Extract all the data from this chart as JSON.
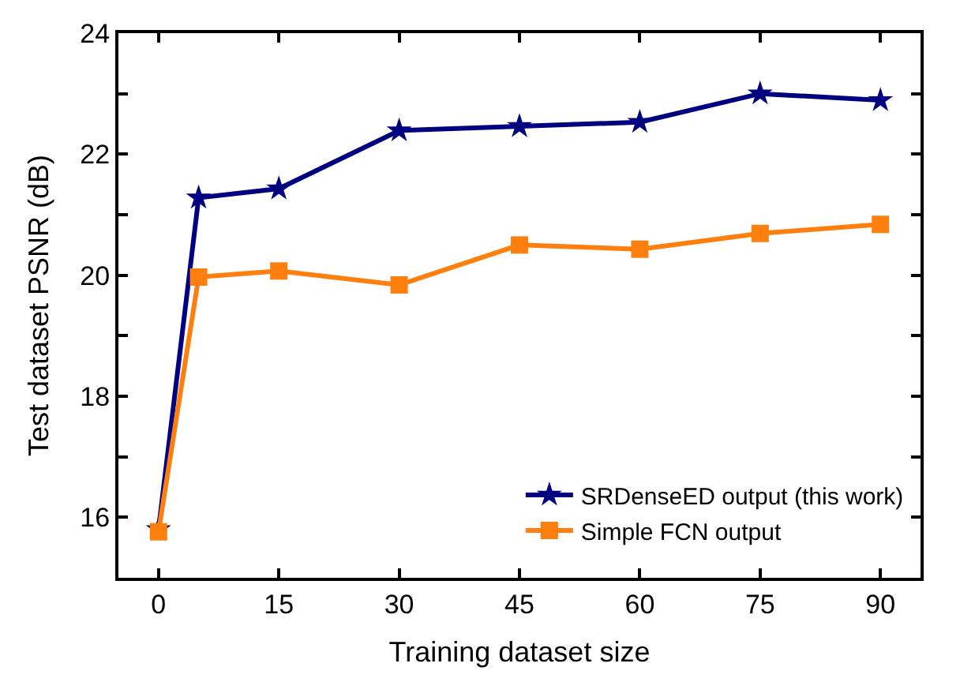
{
  "chart_data": {
    "type": "line",
    "xlabel": "Training dataset size",
    "ylabel": "Test dataset PSNR (dB)",
    "x": [
      0,
      5,
      15,
      30,
      45,
      60,
      75,
      90
    ],
    "series": [
      {
        "name": "SRDenseED output (this work)",
        "color": "#000080",
        "marker": "star",
        "values": [
          15.8,
          21.28,
          21.43,
          22.39,
          22.46,
          22.53,
          23.0,
          22.89
        ]
      },
      {
        "name": "Simple FCN output",
        "color": "#ff7f0e",
        "marker": "square",
        "values": [
          15.76,
          19.97,
          20.07,
          19.84,
          20.5,
          20.43,
          20.69,
          20.84
        ]
      }
    ],
    "xlim": [
      -5,
      95
    ],
    "ylim": [
      15,
      24
    ],
    "xticks": [
      0,
      15,
      30,
      45,
      60,
      75,
      90
    ],
    "yticks": [
      {
        "value": 15,
        "label": null
      },
      16,
      {
        "value": 17,
        "label": null
      },
      18,
      {
        "value": 19,
        "label": null
      },
      20,
      {
        "value": 21,
        "label": null
      },
      22,
      {
        "value": 23,
        "label": null
      },
      24
    ],
    "legend": "bottom right",
    "line_style": "solid"
  }
}
